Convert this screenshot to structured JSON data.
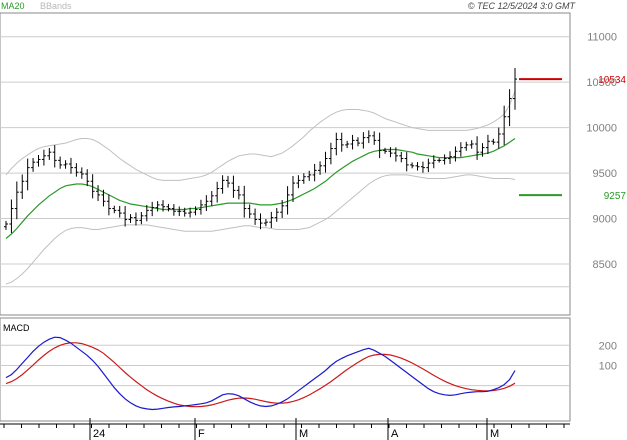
{
  "header": {
    "legend": [
      {
        "label": "MA20",
        "color": "#2a9a2a"
      },
      {
        "label": "BBands",
        "color": "#b8b8b8"
      }
    ],
    "copyright": "© TEC 12/5/2024 3:0 GMT"
  },
  "macd_panel": {
    "label": "MACD"
  },
  "colors": {
    "price": "#000000",
    "ma20": "#2a9a2a",
    "bbands": "#c0c0c0",
    "grid": "#cccccc",
    "frame": "#888888",
    "resistance": "#cc0000",
    "support": "#2a9a2a",
    "macd": "#1a1acc",
    "signal": "#cc1a1a",
    "axis_text": "#808080"
  },
  "chart_data": [
    {
      "type": "bar",
      "subtype": "ohlc",
      "x_tick_labels": [
        "24",
        "F",
        "M",
        "A",
        "M"
      ],
      "y_tick_labels": [
        "11000",
        "10500",
        "10000",
        "9500",
        "9000",
        "8500"
      ],
      "ylim": [
        7950,
        11250
      ],
      "grid": true,
      "levels": [
        {
          "name": "resistance",
          "label": "10534",
          "value": 10534
        },
        {
          "name": "support",
          "label": "9257",
          "value": 9257
        }
      ],
      "closes": [
        8940,
        9110,
        9290,
        9410,
        9560,
        9620,
        9650,
        9690,
        9730,
        9640,
        9590,
        9600,
        9560,
        9510,
        9490,
        9410,
        9300,
        9260,
        9190,
        9110,
        9090,
        9060,
        8990,
        9010,
        8980,
        9030,
        9090,
        9120,
        9150,
        9130,
        9110,
        9080,
        9080,
        9060,
        9070,
        9100,
        9150,
        9190,
        9250,
        9330,
        9420,
        9390,
        9310,
        9260,
        9110,
        9050,
        8990,
        8950,
        8960,
        9010,
        9070,
        9140,
        9260,
        9390,
        9420,
        9460,
        9480,
        9530,
        9580,
        9660,
        9770,
        9870,
        9810,
        9820,
        9860,
        9830,
        9890,
        9910,
        9860,
        9750,
        9740,
        9720,
        9690,
        9660,
        9590,
        9580,
        9570,
        9560,
        9610,
        9640,
        9640,
        9660,
        9680,
        9740,
        9780,
        9810,
        9820,
        9730,
        9780,
        9850,
        9840,
        9930,
        10120,
        10320,
        10534
      ],
      "ma20": [
        8780,
        8830,
        8890,
        8960,
        9030,
        9090,
        9150,
        9200,
        9250,
        9290,
        9330,
        9360,
        9370,
        9380,
        9380,
        9370,
        9350,
        9320,
        9290,
        9260,
        9230,
        9200,
        9180,
        9160,
        9150,
        9140,
        9130,
        9120,
        9110,
        9100,
        9100,
        9100,
        9100,
        9100,
        9110,
        9110,
        9120,
        9130,
        9140,
        9150,
        9160,
        9170,
        9170,
        9170,
        9170,
        9170,
        9160,
        9150,
        9150,
        9150,
        9160,
        9170,
        9190,
        9210,
        9240,
        9270,
        9300,
        9330,
        9370,
        9410,
        9460,
        9510,
        9550,
        9590,
        9630,
        9660,
        9690,
        9720,
        9740,
        9750,
        9760,
        9760,
        9760,
        9750,
        9740,
        9730,
        9710,
        9700,
        9690,
        9680,
        9670,
        9670,
        9670,
        9670,
        9670,
        9680,
        9690,
        9700,
        9710,
        9720,
        9740,
        9770,
        9800,
        9840,
        9880
      ],
      "bb_upper": [
        9480,
        9550,
        9610,
        9660,
        9700,
        9740,
        9770,
        9790,
        9800,
        9810,
        9820,
        9830,
        9850,
        9870,
        9880,
        9880,
        9870,
        9840,
        9800,
        9760,
        9710,
        9660,
        9620,
        9580,
        9540,
        9510,
        9480,
        9450,
        9430,
        9420,
        9420,
        9420,
        9420,
        9430,
        9440,
        9450,
        9460,
        9480,
        9510,
        9550,
        9590,
        9630,
        9660,
        9690,
        9700,
        9710,
        9710,
        9700,
        9690,
        9680,
        9700,
        9720,
        9760,
        9800,
        9850,
        9900,
        9960,
        10010,
        10060,
        10100,
        10140,
        10170,
        10190,
        10200,
        10200,
        10200,
        10190,
        10180,
        10160,
        10130,
        10100,
        10080,
        10060,
        10040,
        10020,
        10000,
        9990,
        9980,
        9970,
        9970,
        9970,
        9970,
        9970,
        9970,
        9970,
        9970,
        9980,
        9990,
        10010,
        10030,
        10060,
        10100,
        10150,
        10250,
        10400
      ],
      "bb_lower": [
        8280,
        8300,
        8340,
        8390,
        8450,
        8520,
        8590,
        8660,
        8720,
        8780,
        8830,
        8870,
        8890,
        8900,
        8900,
        8890,
        8880,
        8880,
        8890,
        8900,
        8910,
        8920,
        8930,
        8930,
        8930,
        8930,
        8930,
        8920,
        8910,
        8900,
        8890,
        8880,
        8870,
        8860,
        8860,
        8860,
        8860,
        8860,
        8860,
        8870,
        8880,
        8890,
        8900,
        8910,
        8920,
        8920,
        8910,
        8900,
        8900,
        8890,
        8880,
        8880,
        8880,
        8880,
        8880,
        8890,
        8900,
        8930,
        8960,
        8990,
        9030,
        9080,
        9130,
        9180,
        9230,
        9280,
        9330,
        9380,
        9420,
        9450,
        9470,
        9480,
        9480,
        9480,
        9480,
        9470,
        9460,
        9450,
        9440,
        9440,
        9440,
        9440,
        9450,
        9460,
        9470,
        9480,
        9480,
        9470,
        9460,
        9450,
        9440,
        9440,
        9440,
        9440,
        9430
      ]
    },
    {
      "type": "line",
      "title": "MACD",
      "y_tick_labels": [
        "200",
        "100"
      ],
      "ylim": [
        -170,
        330
      ],
      "series": [
        {
          "values": [
            40,
            55,
            80,
            110,
            140,
            170,
            195,
            215,
            230,
            240,
            238,
            225,
            210,
            190,
            170,
            150,
            125,
            95,
            60,
            25,
            -10,
            -40,
            -65,
            -85,
            -100,
            -110,
            -115,
            -118,
            -116,
            -112,
            -108,
            -105,
            -103,
            -100,
            -97,
            -94,
            -90,
            -85,
            -75,
            -60,
            -45,
            -40,
            -42,
            -50,
            -65,
            -80,
            -92,
            -100,
            -103,
            -100,
            -92,
            -80,
            -65,
            -45,
            -25,
            -5,
            15,
            35,
            55,
            75,
            100,
            120,
            135,
            148,
            158,
            168,
            178,
            185,
            175,
            160,
            145,
            125,
            105,
            85,
            65,
            45,
            25,
            5,
            -15,
            -30,
            -40,
            -45,
            -48,
            -45,
            -40,
            -35,
            -32,
            -30,
            -30,
            -28,
            -20,
            -10,
            5,
            30,
            75
          ]
        },
        {
          "values": [
            10,
            20,
            35,
            55,
            78,
            102,
            127,
            150,
            170,
            187,
            200,
            208,
            212,
            212,
            208,
            200,
            190,
            177,
            160,
            138,
            115,
            90,
            65,
            42,
            20,
            0,
            -20,
            -37,
            -52,
            -65,
            -77,
            -87,
            -95,
            -100,
            -103,
            -104,
            -103,
            -100,
            -95,
            -88,
            -80,
            -72,
            -66,
            -62,
            -61,
            -63,
            -67,
            -73,
            -79,
            -84,
            -87,
            -87,
            -84,
            -78,
            -70,
            -59,
            -46,
            -31,
            -15,
            2,
            20,
            40,
            60,
            80,
            98,
            115,
            131,
            145,
            152,
            155,
            155,
            152,
            145,
            136,
            125,
            112,
            98,
            83,
            67,
            51,
            36,
            22,
            10,
            0,
            -8,
            -15,
            -20,
            -23,
            -25,
            -26,
            -24,
            -20,
            -13,
            -3,
            12
          ]
        }
      ]
    }
  ]
}
